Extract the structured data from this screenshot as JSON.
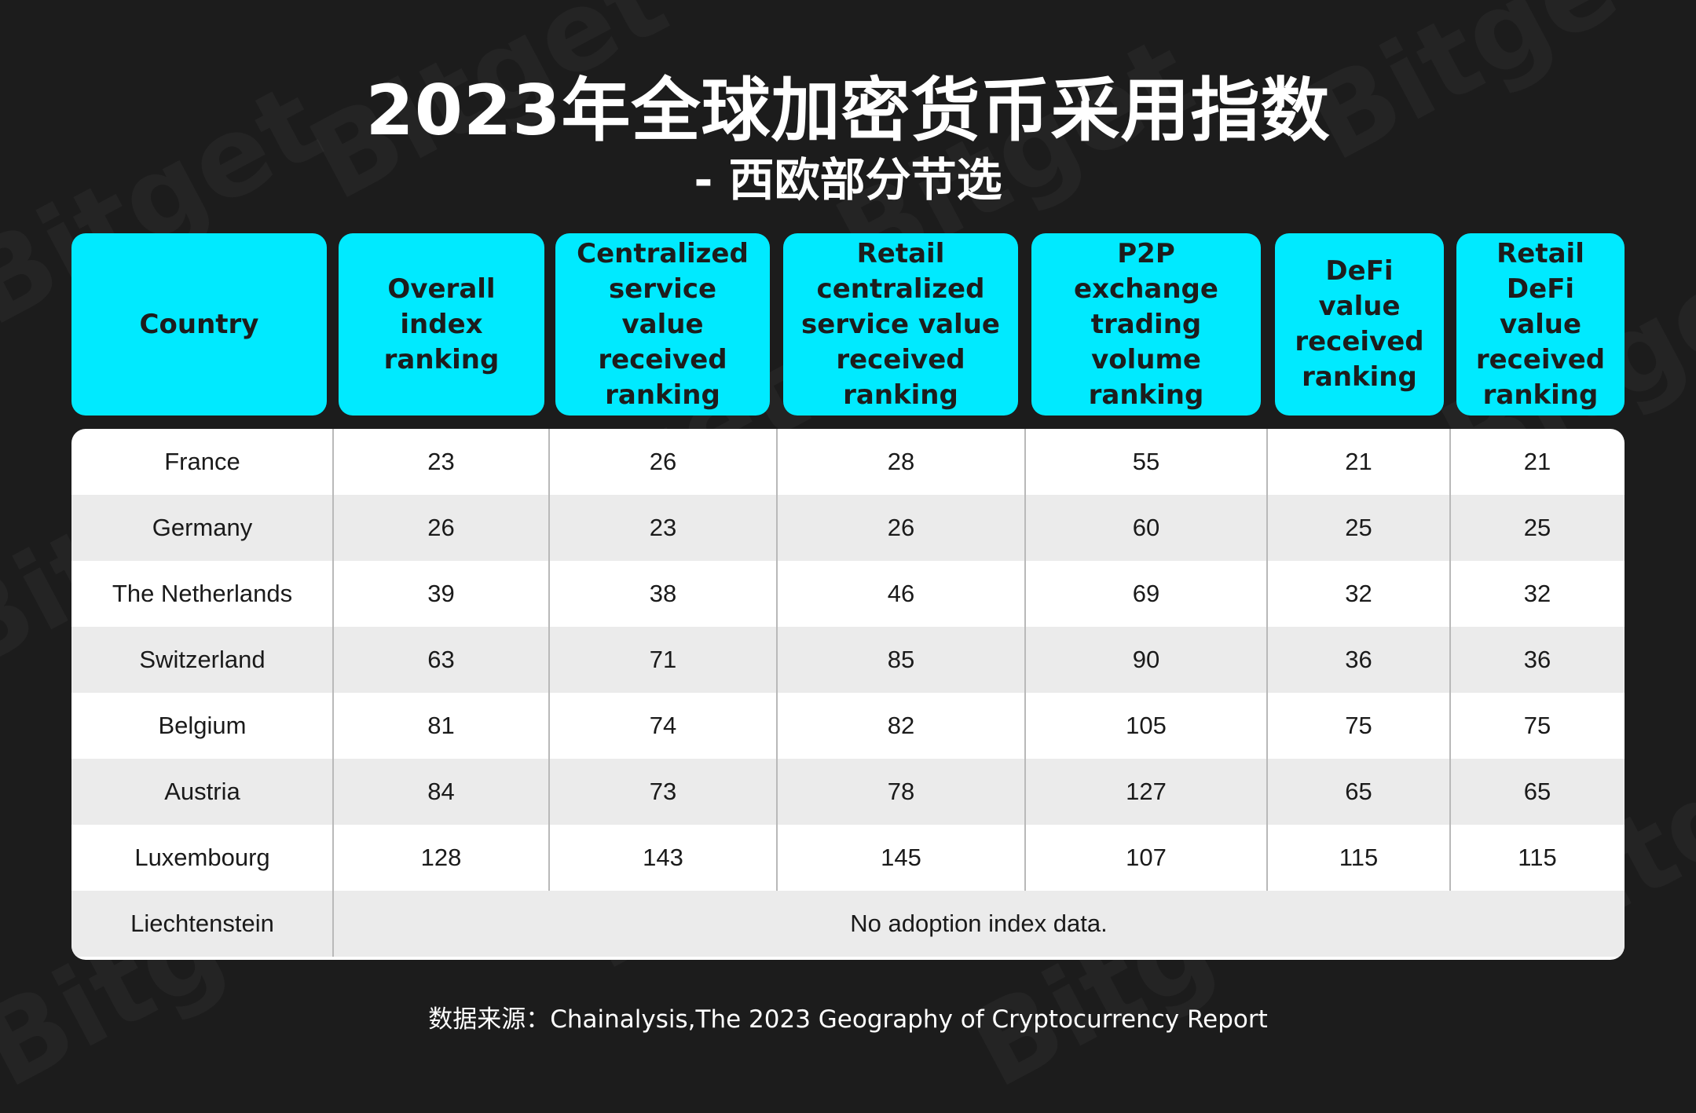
{
  "header": {
    "title": "2023年全球加密货币采用指数",
    "subtitle": "- 西欧部分节选"
  },
  "watermark_text": "Bitget",
  "chart_data": {
    "type": "table",
    "columns": [
      "Country",
      "Overall index\nranking",
      "Centralized\nservice value\nreceived\nranking",
      "Retail\ncentralized\nservice value\nreceived ranking",
      "P2P exchange\ntrading volume\nranking",
      "DeFi value\nreceived\nranking",
      "Retail DeFi\nvalue\nreceived\nranking"
    ],
    "rows": [
      {
        "country": "France",
        "values": [
          "23",
          "26",
          "28",
          "55",
          "21",
          "21"
        ]
      },
      {
        "country": "Germany",
        "values": [
          "26",
          "23",
          "26",
          "60",
          "25",
          "25"
        ]
      },
      {
        "country": "The Netherlands",
        "values": [
          "39",
          "38",
          "46",
          "69",
          "32",
          "32"
        ]
      },
      {
        "country": "Switzerland",
        "values": [
          "63",
          "71",
          "85",
          "90",
          "36",
          "36"
        ]
      },
      {
        "country": "Belgium",
        "values": [
          "81",
          "74",
          "82",
          "105",
          "75",
          "75"
        ]
      },
      {
        "country": "Austria",
        "values": [
          "84",
          "73",
          "78",
          "127",
          "65",
          "65"
        ]
      },
      {
        "country": "Luxembourg",
        "values": [
          "128",
          "143",
          "145",
          "107",
          "115",
          "115"
        ]
      },
      {
        "country": "Liechtenstein",
        "note": "No adoption index data."
      }
    ]
  },
  "footer": {
    "source": "数据来源：Chainalysis,The 2023 Geography of Cryptocurrency Report"
  },
  "colors": {
    "background": "#1c1c1c",
    "header_cell": "#00eaff",
    "row_light": "#ffffff",
    "row_alt": "#ebebeb",
    "divider": "#b9b9b9"
  }
}
